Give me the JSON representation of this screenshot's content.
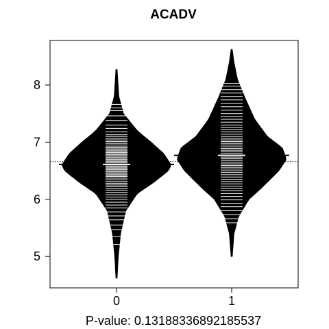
{
  "chart_data": {
    "type": "beanplot",
    "title": "ACADV",
    "xlabel": "P-value: 0.13188336892185537",
    "ylabel": "",
    "categories": [
      "0",
      "1"
    ],
    "y_ticks": [
      "5",
      "6",
      "7",
      "8"
    ],
    "ylim": [
      4.45,
      8.78
    ],
    "overall_mean": 6.66,
    "grid": false,
    "series": [
      {
        "category": "0",
        "mean": 6.61,
        "min": 4.62,
        "max": 8.27,
        "density_profile": [
          [
            4.62,
            0.01
          ],
          [
            5.0,
            0.03
          ],
          [
            5.4,
            0.07
          ],
          [
            5.8,
            0.16
          ],
          [
            6.1,
            0.36
          ],
          [
            6.3,
            0.65
          ],
          [
            6.5,
            0.9
          ],
          [
            6.6,
            0.95
          ],
          [
            6.8,
            0.82
          ],
          [
            7.0,
            0.6
          ],
          [
            7.2,
            0.36
          ],
          [
            7.5,
            0.12
          ],
          [
            7.8,
            0.04
          ],
          [
            8.27,
            0.01
          ]
        ],
        "observations": [
          5.21,
          5.35,
          5.47,
          5.55,
          5.64,
          5.71,
          5.78,
          5.85,
          5.9,
          5.95,
          6.0,
          6.04,
          6.08,
          6.12,
          6.16,
          6.19,
          6.22,
          6.25,
          6.28,
          6.31,
          6.34,
          6.37,
          6.4,
          6.42,
          6.44,
          6.46,
          6.48,
          6.5,
          6.52,
          6.54,
          6.56,
          6.58,
          6.6,
          6.62,
          6.64,
          6.66,
          6.68,
          6.7,
          6.72,
          6.74,
          6.76,
          6.78,
          6.8,
          6.82,
          6.84,
          6.86,
          6.88,
          6.9,
          6.92,
          6.95,
          6.98,
          7.01,
          7.04,
          7.07,
          7.1,
          7.13,
          7.18,
          7.24,
          7.3,
          7.38,
          7.46,
          7.55,
          7.6,
          7.66
        ]
      },
      {
        "category": "1",
        "mean": 6.77,
        "min": 5.0,
        "max": 8.62,
        "density_profile": [
          [
            5.0,
            0.01
          ],
          [
            5.4,
            0.04
          ],
          [
            5.7,
            0.12
          ],
          [
            6.0,
            0.3
          ],
          [
            6.2,
            0.52
          ],
          [
            6.5,
            0.82
          ],
          [
            6.7,
            0.95
          ],
          [
            6.9,
            0.88
          ],
          [
            7.1,
            0.62
          ],
          [
            7.4,
            0.4
          ],
          [
            7.8,
            0.22
          ],
          [
            8.1,
            0.1
          ],
          [
            8.4,
            0.04
          ],
          [
            8.62,
            0.01
          ]
        ],
        "observations": [
          5.59,
          5.66,
          5.73,
          5.8,
          5.87,
          5.93,
          5.99,
          6.05,
          6.1,
          6.15,
          6.19,
          6.23,
          6.27,
          6.31,
          6.35,
          6.39,
          6.43,
          6.47,
          6.5,
          6.53,
          6.56,
          6.59,
          6.62,
          6.65,
          6.68,
          6.71,
          6.74,
          6.77,
          6.8,
          6.83,
          6.86,
          6.89,
          6.92,
          6.95,
          6.98,
          7.01,
          7.04,
          7.07,
          7.1,
          7.14,
          7.18,
          7.22,
          7.26,
          7.3,
          7.35,
          7.4,
          7.45,
          7.5,
          7.56,
          7.62,
          7.68,
          7.74,
          7.8,
          7.86,
          7.92,
          7.98,
          8.03
        ]
      }
    ]
  }
}
